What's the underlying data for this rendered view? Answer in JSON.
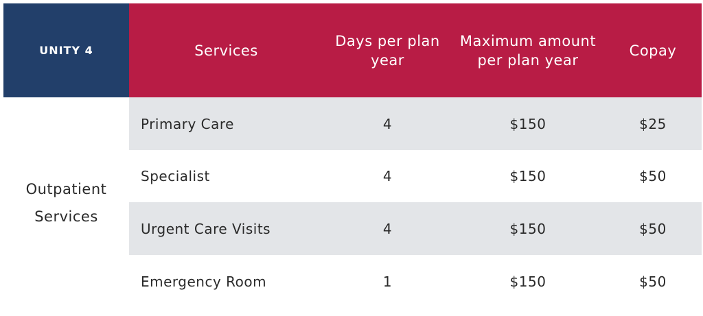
{
  "header": {
    "plan_name": "UNITY 4",
    "services_label": "Services",
    "days_label": "Days per plan year",
    "max_label": "Maximum amount per plan year",
    "copay_label": "Copay"
  },
  "category": {
    "label": "Outpatient Services"
  },
  "rows": [
    {
      "service": "Primary Care",
      "days": "4",
      "max": "$150",
      "copay": "$25"
    },
    {
      "service": "Specialist",
      "days": "4",
      "max": "$150",
      "copay": "$50"
    },
    {
      "service": "Urgent Care Visits",
      "days": "4",
      "max": "$150",
      "copay": "$50"
    },
    {
      "service": "Emergency Room",
      "days": "1",
      "max": "$150",
      "copay": "$50"
    }
  ],
  "colors": {
    "plan_bg": "#223f6a",
    "header_bg": "#b81c45",
    "shade_row": "#e3e5e8"
  }
}
